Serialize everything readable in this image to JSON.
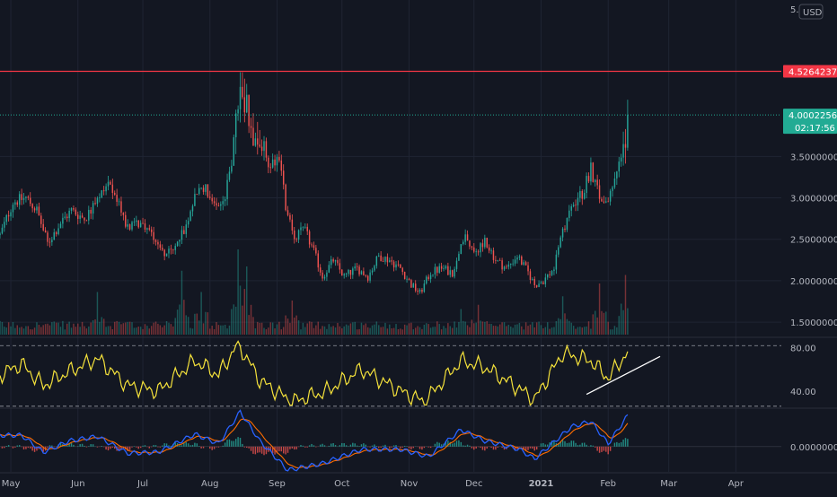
{
  "currency_label": "USD",
  "colors": {
    "background": "#131722",
    "grid": "#1f2433",
    "up": "#26a69a",
    "down": "#ef5350",
    "axis_text": "#b2b5be",
    "resistance": "#f23645",
    "last_price": "#22ab94",
    "rsi": "#f5e23b",
    "macd": "#2962ff",
    "signal": "#ff6d00",
    "trendline": "#ffffff"
  },
  "chart_data": [
    {
      "type": "candlestick",
      "title": "",
      "y_scale": "linear",
      "ylim": [
        1.35,
        5.3
      ],
      "y_ticks": [
        "1.5000000",
        "2.0000000",
        "2.5000000",
        "3.0000000",
        "3.5000000"
      ],
      "top_partial_tick": "5.",
      "x_ticks": [
        "May",
        "Jun",
        "Jul",
        "Aug",
        "Sep",
        "Oct",
        "Nov",
        "Dec",
        "2021",
        "Feb",
        "Mar",
        "Apr"
      ],
      "x_range": [
        "2020-04-26",
        "2021-04-22"
      ],
      "resistance_line": {
        "value": 4.5264237,
        "label": "4.5264237"
      },
      "last_price": {
        "value": 4.0002256,
        "label": "4.0002256",
        "countdown": "02:17:56"
      },
      "price_path": [
        [
          "2020-04-26",
          2.55
        ],
        [
          "2020-05-02",
          2.95
        ],
        [
          "2020-05-08",
          3.0
        ],
        [
          "2020-05-13",
          2.85
        ],
        [
          "2020-05-18",
          2.45
        ],
        [
          "2020-05-24",
          2.7
        ],
        [
          "2020-05-29",
          2.85
        ],
        [
          "2020-06-04",
          2.75
        ],
        [
          "2020-06-10",
          2.95
        ],
        [
          "2020-06-14",
          3.15
        ],
        [
          "2020-06-18",
          3.05
        ],
        [
          "2020-06-24",
          2.65
        ],
        [
          "2020-06-30",
          2.7
        ],
        [
          "2020-07-06",
          2.55
        ],
        [
          "2020-07-10",
          2.35
        ],
        [
          "2020-07-15",
          2.35
        ],
        [
          "2020-07-20",
          2.6
        ],
        [
          "2020-07-25",
          3.05
        ],
        [
          "2020-07-30",
          3.1
        ],
        [
          "2020-08-04",
          2.9
        ],
        [
          "2020-08-08",
          3.0
        ],
        [
          "2020-08-12",
          3.6
        ],
        [
          "2020-08-15",
          4.35
        ],
        [
          "2020-08-17",
          4.25
        ],
        [
          "2020-08-20",
          3.9
        ],
        [
          "2020-08-24",
          3.65
        ],
        [
          "2020-08-28",
          3.4
        ],
        [
          "2020-09-02",
          3.5
        ],
        [
          "2020-09-05",
          2.9
        ],
        [
          "2020-09-09",
          2.55
        ],
        [
          "2020-09-14",
          2.6
        ],
        [
          "2020-09-18",
          2.35
        ],
        [
          "2020-09-22",
          2.05
        ],
        [
          "2020-09-27",
          2.25
        ],
        [
          "2020-10-02",
          2.05
        ],
        [
          "2020-10-08",
          2.15
        ],
        [
          "2020-10-13",
          2.05
        ],
        [
          "2020-10-18",
          2.3
        ],
        [
          "2020-10-23",
          2.25
        ],
        [
          "2020-10-28",
          2.15
        ],
        [
          "2020-11-02",
          1.95
        ],
        [
          "2020-11-06",
          1.85
        ],
        [
          "2020-11-11",
          2.1
        ],
        [
          "2020-11-16",
          2.15
        ],
        [
          "2020-11-21",
          2.1
        ],
        [
          "2020-11-24",
          2.35
        ],
        [
          "2020-11-27",
          2.5
        ],
        [
          "2020-12-01",
          2.3
        ],
        [
          "2020-12-06",
          2.5
        ],
        [
          "2020-12-11",
          2.25
        ],
        [
          "2020-12-16",
          2.15
        ],
        [
          "2020-12-21",
          2.3
        ],
        [
          "2020-12-26",
          2.1
        ],
        [
          "2020-12-29",
          1.95
        ],
        [
          "2021-01-02",
          2.0
        ],
        [
          "2021-01-07",
          2.15
        ],
        [
          "2021-01-11",
          2.6
        ],
        [
          "2021-01-15",
          2.9
        ],
        [
          "2021-01-20",
          3.05
        ],
        [
          "2021-01-24",
          3.35
        ],
        [
          "2021-01-28",
          3.0
        ],
        [
          "2021-02-01",
          2.95
        ],
        [
          "2021-02-05",
          3.3
        ],
        [
          "2021-02-08",
          3.6
        ],
        [
          "2021-02-10",
          4.0
        ]
      ],
      "volume_spikes": [
        [
          "2020-06-10",
          0.5
        ],
        [
          "2020-07-19",
          0.75
        ],
        [
          "2020-07-28",
          0.5
        ],
        [
          "2020-08-14",
          1.0
        ],
        [
          "2020-08-18",
          0.8
        ],
        [
          "2020-09-08",
          0.4
        ],
        [
          "2020-11-25",
          0.3
        ],
        [
          "2020-12-03",
          0.35
        ],
        [
          "2021-01-11",
          0.45
        ],
        [
          "2021-01-28",
          0.6
        ],
        [
          "2021-02-09",
          0.7
        ]
      ]
    },
    {
      "type": "line",
      "title": "",
      "ylim": [
        25,
        88
      ],
      "y_ticks": [
        "80.00",
        "40.00"
      ],
      "bands": [
        82,
        26
      ],
      "rsi_path": [
        [
          "2020-04-26",
          55
        ],
        [
          "2020-05-06",
          65
        ],
        [
          "2020-05-16",
          45
        ],
        [
          "2020-05-28",
          58
        ],
        [
          "2020-06-10",
          70
        ],
        [
          "2020-06-24",
          45
        ],
        [
          "2020-07-08",
          40
        ],
        [
          "2020-07-25",
          68
        ],
        [
          "2020-08-05",
          55
        ],
        [
          "2020-08-14",
          84
        ],
        [
          "2020-08-24",
          50
        ],
        [
          "2020-09-08",
          30
        ],
        [
          "2020-09-24",
          40
        ],
        [
          "2020-10-10",
          60
        ],
        [
          "2020-10-28",
          40
        ],
        [
          "2020-11-08",
          30
        ],
        [
          "2020-11-25",
          68
        ],
        [
          "2020-12-06",
          62
        ],
        [
          "2020-12-22",
          42
        ],
        [
          "2020-12-29",
          32
        ],
        [
          "2021-01-11",
          75
        ],
        [
          "2021-01-24",
          68
        ],
        [
          "2021-02-01",
          52
        ],
        [
          "2021-02-10",
          76
        ]
      ],
      "trendline": [
        [
          "2021-01-22",
          37
        ],
        [
          "2021-02-25",
          72
        ]
      ]
    },
    {
      "type": "line",
      "title": "",
      "ylim": [
        -0.45,
        0.65
      ],
      "y_ticks": [
        "0.0000000"
      ],
      "macd_path": [
        [
          "2020-04-26",
          0.2
        ],
        [
          "2020-05-06",
          0.2
        ],
        [
          "2020-05-16",
          -0.1
        ],
        [
          "2020-05-28",
          0.1
        ],
        [
          "2020-06-10",
          0.18
        ],
        [
          "2020-06-24",
          -0.12
        ],
        [
          "2020-07-08",
          -0.1
        ],
        [
          "2020-07-25",
          0.22
        ],
        [
          "2020-08-05",
          0.05
        ],
        [
          "2020-08-15",
          0.62
        ],
        [
          "2020-08-24",
          0.1
        ],
        [
          "2020-09-06",
          -0.42
        ],
        [
          "2020-09-22",
          -0.3
        ],
        [
          "2020-10-10",
          -0.05
        ],
        [
          "2020-10-28",
          -0.05
        ],
        [
          "2020-11-10",
          -0.18
        ],
        [
          "2020-11-25",
          0.3
        ],
        [
          "2020-12-06",
          0.1
        ],
        [
          "2020-12-22",
          -0.05
        ],
        [
          "2020-12-29",
          -0.22
        ],
        [
          "2021-01-15",
          0.35
        ],
        [
          "2021-01-24",
          0.45
        ],
        [
          "2021-02-01",
          0.05
        ],
        [
          "2021-02-10",
          0.55
        ]
      ]
    }
  ]
}
